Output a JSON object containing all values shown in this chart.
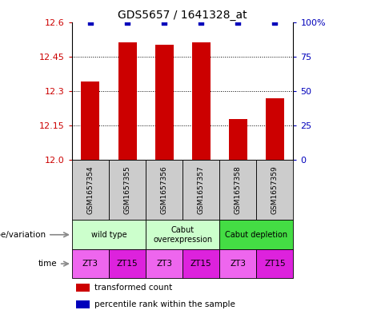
{
  "title": "GDS5657 / 1641328_at",
  "samples": [
    "GSM1657354",
    "GSM1657355",
    "GSM1657356",
    "GSM1657357",
    "GSM1657358",
    "GSM1657359"
  ],
  "bar_values": [
    12.34,
    12.51,
    12.5,
    12.51,
    12.18,
    12.27
  ],
  "percentile_values": [
    100,
    100,
    100,
    100,
    100,
    100
  ],
  "ylim_left": [
    12.0,
    12.6
  ],
  "ylim_right": [
    0,
    100
  ],
  "yticks_left": [
    12.0,
    12.15,
    12.3,
    12.45,
    12.6
  ],
  "yticks_right": [
    0,
    25,
    50,
    75,
    100
  ],
  "bar_color": "#cc0000",
  "percentile_color": "#0000bb",
  "background_color": "#ffffff",
  "geno_labels": [
    "wild type",
    "Cabut\noverexpression",
    "Cabut depletion"
  ],
  "geno_ranges": [
    [
      0,
      2
    ],
    [
      2,
      4
    ],
    [
      4,
      6
    ]
  ],
  "geno_colors": [
    "#ccffcc",
    "#ccffcc",
    "#44dd44"
  ],
  "time_values": [
    "ZT3",
    "ZT15",
    "ZT3",
    "ZT15",
    "ZT3",
    "ZT15"
  ],
  "time_colors": [
    "#ee66ee",
    "#dd22dd",
    "#ee66ee",
    "#dd22dd",
    "#ee66ee",
    "#dd22dd"
  ],
  "label_genotype": "genotype/variation",
  "label_time": "time",
  "legend_items": [
    {
      "label": "transformed count",
      "color": "#cc0000"
    },
    {
      "label": "percentile rank within the sample",
      "color": "#0000bb"
    }
  ],
  "tick_color_left": "#cc0000",
  "tick_color_right": "#0000bb",
  "sample_box_color": "#cccccc",
  "n": 6
}
